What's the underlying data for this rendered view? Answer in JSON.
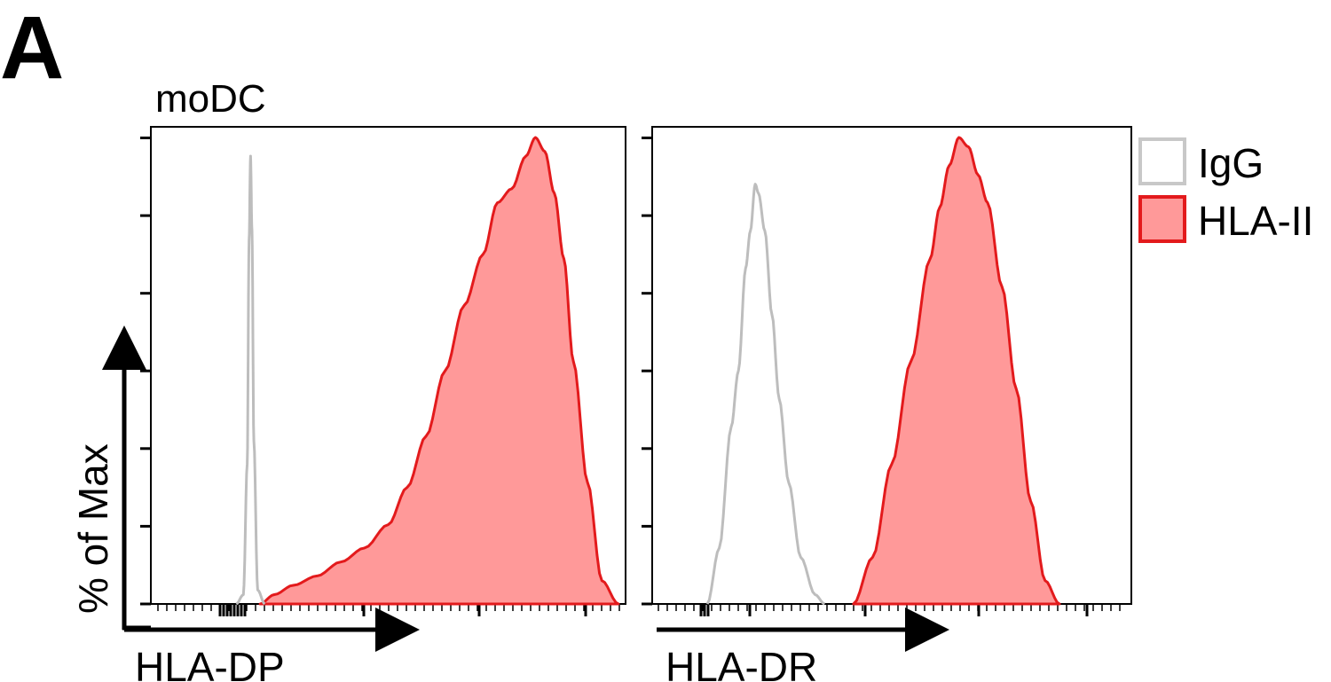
{
  "panel_label": "A",
  "cell_type": "moDC",
  "y_axis_label": "% of Max",
  "legend": [
    {
      "label": "IgG",
      "stroke": "#c8c8c8",
      "fill": "#ffffff"
    },
    {
      "label": "HLA-II",
      "stroke": "#e31a1c",
      "fill": "#ff9999"
    }
  ],
  "colors": {
    "igg_line": "#bdbdbd",
    "hla_line": "#e31a1c",
    "hla_fill": "#ff9999"
  },
  "chart_data": [
    {
      "type": "area",
      "xlabel": "HLA-DP",
      "ylabel": "% of Max",
      "ylim": [
        0,
        100
      ],
      "x_scale": "log",
      "series": [
        {
          "name": "IgG",
          "style": "outline",
          "x": [
            0.18,
            0.195,
            0.203,
            0.207,
            0.21,
            0.213,
            0.217,
            0.225,
            0.24
          ],
          "y": [
            0,
            2,
            30,
            78,
            96,
            80,
            35,
            3,
            0
          ]
        },
        {
          "name": "HLA-II",
          "style": "filled",
          "x": [
            0.23,
            0.26,
            0.3,
            0.35,
            0.4,
            0.45,
            0.5,
            0.54,
            0.58,
            0.62,
            0.66,
            0.7,
            0.73,
            0.76,
            0.79,
            0.81,
            0.83,
            0.85,
            0.87,
            0.89,
            0.92,
            0.95,
            0.985
          ],
          "y": [
            0,
            2,
            4,
            6,
            9,
            12,
            17,
            25,
            36,
            50,
            64,
            75,
            86,
            89,
            96,
            100,
            97,
            88,
            74,
            52,
            26,
            5,
            0
          ]
        }
      ]
    },
    {
      "type": "area",
      "xlabel": "HLA-DR",
      "ylabel": "% of Max",
      "ylim": [
        0,
        100
      ],
      "x_scale": "log",
      "series": [
        {
          "name": "IgG",
          "style": "outline",
          "x": [
            0.115,
            0.14,
            0.165,
            0.18,
            0.195,
            0.205,
            0.215,
            0.222,
            0.235,
            0.25,
            0.265,
            0.285,
            0.31,
            0.34,
            0.36
          ],
          "y": [
            0,
            12,
            38,
            50,
            72,
            80,
            90,
            88,
            80,
            62,
            44,
            26,
            10,
            2,
            0
          ]
        },
        {
          "name": "HLA-II",
          "style": "filled",
          "x": [
            0.42,
            0.46,
            0.5,
            0.54,
            0.58,
            0.6,
            0.62,
            0.64,
            0.66,
            0.68,
            0.7,
            0.73,
            0.76,
            0.79,
            0.82,
            0.85
          ],
          "y": [
            0,
            10,
            30,
            52,
            74,
            85,
            94,
            100,
            98,
            92,
            86,
            68,
            46,
            22,
            5,
            0
          ]
        }
      ]
    }
  ]
}
